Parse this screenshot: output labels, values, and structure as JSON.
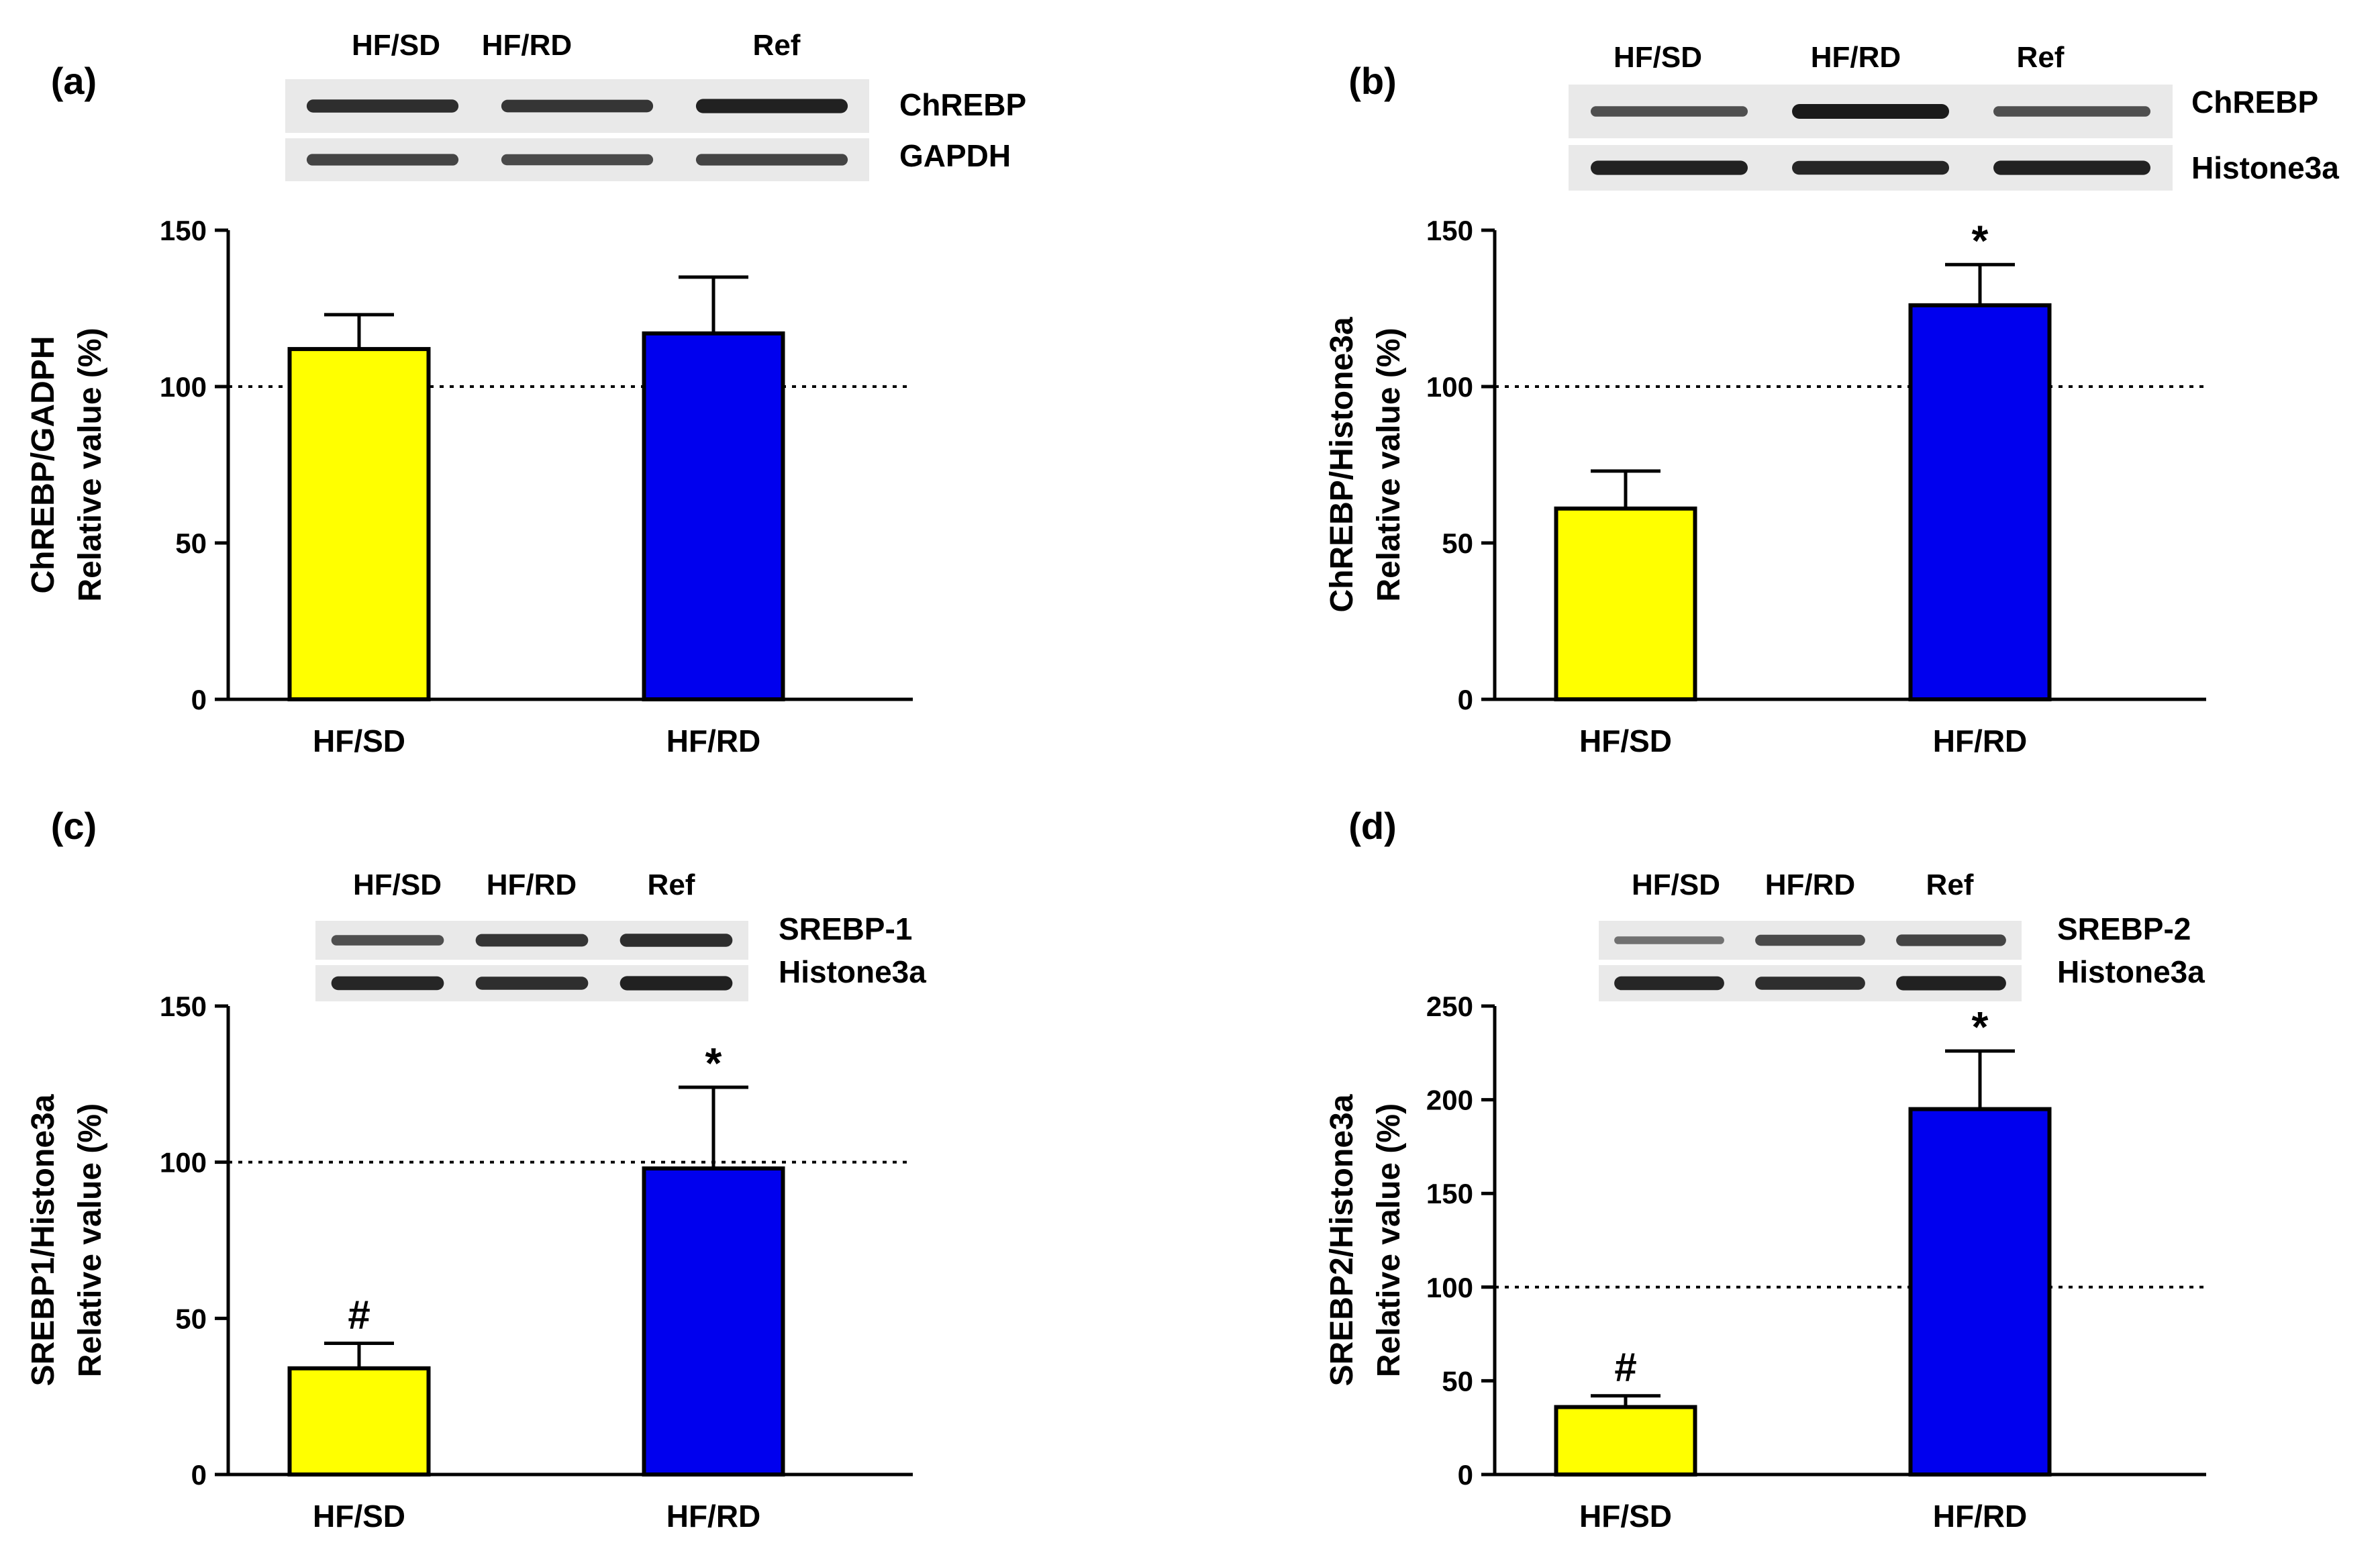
{
  "colors": {
    "hf_sd": "#ffff00",
    "hf_rd": "#0000ee",
    "axis": "#000000",
    "blot_band": "#1a1a1a",
    "blot_bg": "#e9e9e9"
  },
  "chart_data": [
    {
      "id": "a",
      "panel_label": "(a)",
      "type": "bar",
      "categories": [
        "HF/SD",
        "HF/RD"
      ],
      "values": [
        112,
        117
      ],
      "errors": [
        11,
        18
      ],
      "annotations": [
        "",
        ""
      ],
      "ylabel_line1": "ChREBP/GADPH",
      "ylabel_line2": "Relative value (%)",
      "ylim": [
        0,
        150
      ],
      "yticks": [
        0,
        50,
        100,
        150
      ],
      "reference_line": 100,
      "blot": {
        "lanes": [
          "HF/SD",
          "HF/RD",
          "Ref"
        ],
        "rows": [
          {
            "label": "ChREBP",
            "intensity": [
              0.85,
              0.8,
              0.95
            ]
          },
          {
            "label": "GAPDH",
            "intensity": [
              0.7,
              0.65,
              0.7
            ]
          }
        ]
      }
    },
    {
      "id": "b",
      "panel_label": "(b)",
      "type": "bar",
      "categories": [
        "HF/SD",
        "HF/RD"
      ],
      "values": [
        61,
        126
      ],
      "errors": [
        12,
        13
      ],
      "annotations": [
        "",
        "*"
      ],
      "ylabel_line1": "ChREBP/Histone3a",
      "ylabel_line2": "Relative value (%)",
      "ylim": [
        0,
        150
      ],
      "yticks": [
        0,
        50,
        100,
        150
      ],
      "reference_line": 100,
      "blot": {
        "lanes": [
          "HF/SD",
          "HF/RD",
          "Ref"
        ],
        "rows": [
          {
            "label": "ChREBP",
            "intensity": [
              0.6,
              1.0,
              0.6
            ]
          },
          {
            "label": "Histone3a",
            "intensity": [
              0.95,
              0.9,
              0.95
            ]
          }
        ]
      }
    },
    {
      "id": "c",
      "panel_label": "(c)",
      "type": "bar",
      "categories": [
        "HF/SD",
        "HF/RD"
      ],
      "values": [
        34,
        98
      ],
      "errors": [
        8,
        26
      ],
      "annotations": [
        "#",
        "*"
      ],
      "ylabel_line1": "SREBP1/Histone3a",
      "ylabel_line2": "Relative value (%)",
      "ylim": [
        0,
        150
      ],
      "yticks": [
        0,
        50,
        100,
        150
      ],
      "reference_line": 100,
      "blot": {
        "lanes": [
          "HF/SD",
          "HF/RD",
          "Ref"
        ],
        "rows": [
          {
            "label": "SREBP-1",
            "intensity": [
              0.6,
              0.8,
              0.85
            ]
          },
          {
            "label": "Histone3a",
            "intensity": [
              0.9,
              0.85,
              0.95
            ]
          }
        ]
      }
    },
    {
      "id": "d",
      "panel_label": "(d)",
      "type": "bar",
      "categories": [
        "HF/SD",
        "HF/RD"
      ],
      "values": [
        36,
        195
      ],
      "errors": [
        6,
        31
      ],
      "annotations": [
        "#",
        "*"
      ],
      "ylabel_line1": "SREBP2/Histone3a",
      "ylabel_line2": "Relative value (%)",
      "ylim": [
        0,
        250
      ],
      "yticks": [
        0,
        50,
        100,
        150,
        200,
        250
      ],
      "reference_line": 100,
      "blot": {
        "lanes": [
          "HF/SD",
          "HF/RD",
          "Ref"
        ],
        "rows": [
          {
            "label": "SREBP-2",
            "intensity": [
              0.35,
              0.65,
              0.7
            ]
          },
          {
            "label": "Histone3a",
            "intensity": [
              0.9,
              0.85,
              0.95
            ]
          }
        ]
      }
    }
  ]
}
